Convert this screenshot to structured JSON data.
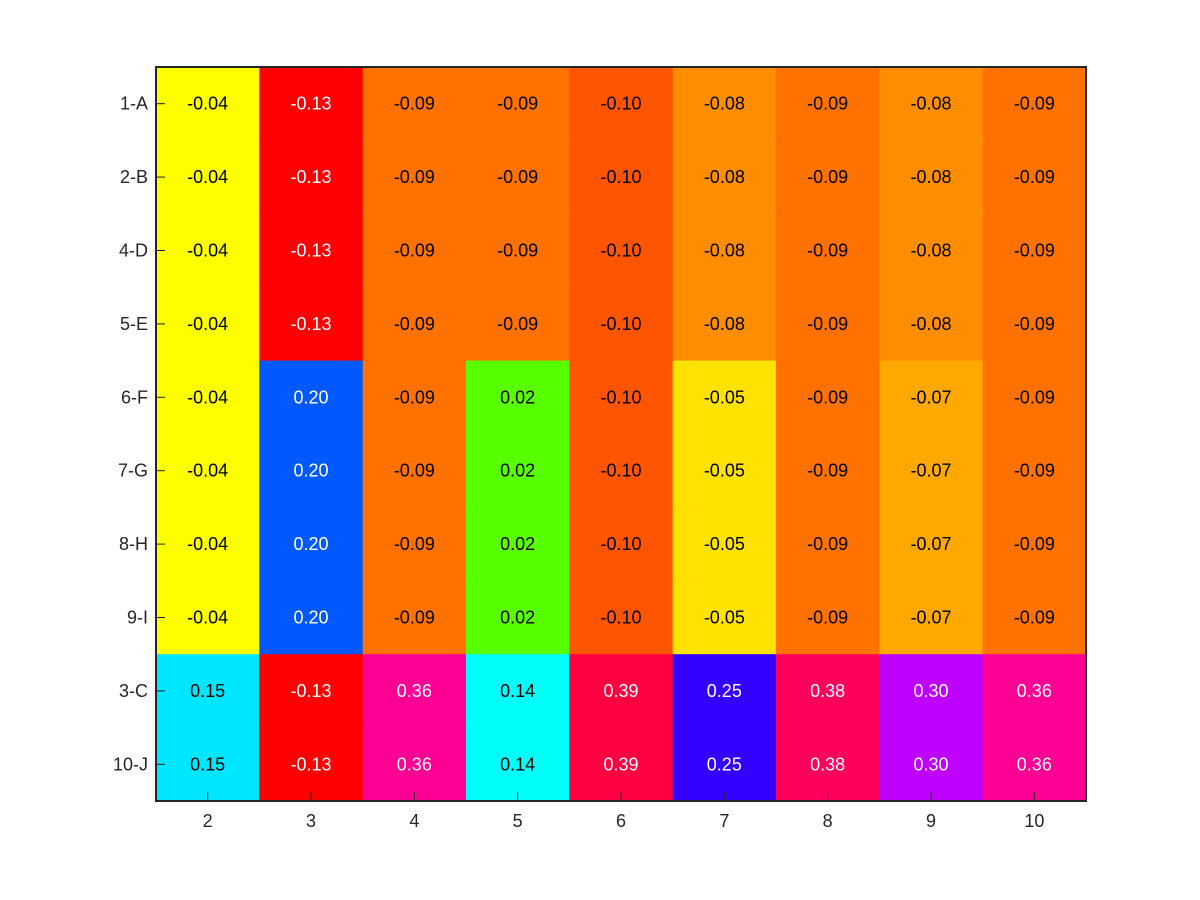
{
  "chart_data": {
    "type": "heatmap",
    "x_labels": [
      "2",
      "3",
      "4",
      "5",
      "6",
      "7",
      "8",
      "9",
      "10"
    ],
    "y_labels": [
      "1-A",
      "2-B",
      "4-D",
      "5-E",
      "6-F",
      "7-G",
      "8-H",
      "9-I",
      "3-C",
      "10-J"
    ],
    "values": [
      [
        -0.04,
        -0.13,
        -0.09,
        -0.09,
        -0.1,
        -0.08,
        -0.09,
        -0.08,
        -0.09
      ],
      [
        -0.04,
        -0.13,
        -0.09,
        -0.09,
        -0.1,
        -0.08,
        -0.09,
        -0.08,
        -0.09
      ],
      [
        -0.04,
        -0.13,
        -0.09,
        -0.09,
        -0.1,
        -0.08,
        -0.09,
        -0.08,
        -0.09
      ],
      [
        -0.04,
        -0.13,
        -0.09,
        -0.09,
        -0.1,
        -0.08,
        -0.09,
        -0.08,
        -0.09
      ],
      [
        -0.04,
        0.2,
        -0.09,
        0.02,
        -0.1,
        -0.05,
        -0.09,
        -0.07,
        -0.09
      ],
      [
        -0.04,
        0.2,
        -0.09,
        0.02,
        -0.1,
        -0.05,
        -0.09,
        -0.07,
        -0.09
      ],
      [
        -0.04,
        0.2,
        -0.09,
        0.02,
        -0.1,
        -0.05,
        -0.09,
        -0.07,
        -0.09
      ],
      [
        -0.04,
        0.2,
        -0.09,
        0.02,
        -0.1,
        -0.05,
        -0.09,
        -0.07,
        -0.09
      ],
      [
        0.15,
        -0.13,
        0.36,
        0.14,
        0.39,
        0.25,
        0.38,
        0.3,
        0.36
      ],
      [
        0.15,
        -0.13,
        0.36,
        0.14,
        0.39,
        0.25,
        0.38,
        0.3,
        0.36
      ]
    ],
    "value_labels": [
      [
        "-0.04",
        "-0.13",
        "-0.09",
        "-0.09",
        "-0.10",
        "-0.08",
        "-0.09",
        "-0.08",
        "-0.09"
      ],
      [
        "-0.04",
        "-0.13",
        "-0.09",
        "-0.09",
        "-0.10",
        "-0.08",
        "-0.09",
        "-0.08",
        "-0.09"
      ],
      [
        "-0.04",
        "-0.13",
        "-0.09",
        "-0.09",
        "-0.10",
        "-0.08",
        "-0.09",
        "-0.08",
        "-0.09"
      ],
      [
        "-0.04",
        "-0.13",
        "-0.09",
        "-0.09",
        "-0.10",
        "-0.08",
        "-0.09",
        "-0.08",
        "-0.09"
      ],
      [
        "-0.04",
        "0.20",
        "-0.09",
        "0.02",
        "-0.10",
        "-0.05",
        "-0.09",
        "-0.07",
        "-0.09"
      ],
      [
        "-0.04",
        "0.20",
        "-0.09",
        "0.02",
        "-0.10",
        "-0.05",
        "-0.09",
        "-0.07",
        "-0.09"
      ],
      [
        "-0.04",
        "0.20",
        "-0.09",
        "0.02",
        "-0.10",
        "-0.05",
        "-0.09",
        "-0.07",
        "-0.09"
      ],
      [
        "-0.04",
        "0.20",
        "-0.09",
        "0.02",
        "-0.10",
        "-0.05",
        "-0.09",
        "-0.07",
        "-0.09"
      ],
      [
        "0.15",
        "-0.13",
        "0.36",
        "0.14",
        "0.39",
        "0.25",
        "0.38",
        "0.30",
        "0.36"
      ],
      [
        "0.15",
        "-0.13",
        "0.36",
        "0.14",
        "0.39",
        "0.25",
        "0.38",
        "0.30",
        "0.36"
      ]
    ],
    "colormap": "hsv",
    "color_range": [
      -0.13,
      0.39
    ],
    "text_color_dark": "#000000",
    "text_color_light": "#ffffff",
    "axis_color": "#262626",
    "grid": false
  }
}
